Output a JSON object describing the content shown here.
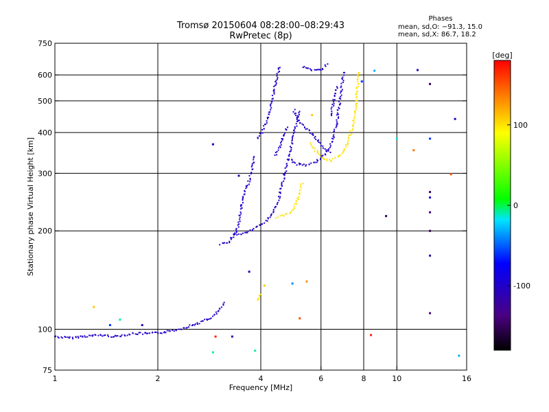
{
  "chart_data": {
    "type": "scatter",
    "title": "Tromsø 20150604 08:28:00–08:29:43",
    "subtitle": "RwPretec (8p)",
    "info_title": "Phases",
    "info_lines": [
      "mean, sd,O: −91.3, 15.0",
      "mean, sd,X:  86.7, 18.2"
    ],
    "xlabel": "Frequency [MHz]",
    "ylabel": "Stationary phase Virtual Height [km]",
    "x_scale": "log",
    "y_scale": "log",
    "xlim": [
      1,
      16
    ],
    "ylim": [
      75,
      750
    ],
    "xticks": [
      1,
      2,
      4,
      6,
      8,
      10,
      16
    ],
    "xtick_labels": [
      "1",
      "2",
      "4",
      "6",
      "8",
      "10",
      "16"
    ],
    "yticks": [
      75,
      100,
      200,
      300,
      400,
      500,
      600,
      750
    ],
    "ytick_labels": [
      "75",
      "100",
      "200",
      "300",
      "400",
      "500",
      "600",
      "750"
    ],
    "grid": true,
    "colorbar": {
      "label": "[deg]",
      "range": [
        -180,
        180
      ],
      "ticks": [
        100,
        0,
        -100
      ],
      "tick_labels": [
        "100",
        "0",
        "-100"
      ]
    },
    "o_trace": {
      "color_phase": -100,
      "segments": [
        [
          [
            1.0,
            95
          ],
          [
            1.1,
            94
          ],
          [
            1.2,
            95
          ],
          [
            1.35,
            96
          ],
          [
            1.5,
            95
          ],
          [
            1.7,
            97
          ],
          [
            1.9,
            97
          ],
          [
            2.1,
            98
          ],
          [
            2.3,
            100
          ],
          [
            2.6,
            104
          ],
          [
            2.85,
            108
          ],
          [
            3.0,
            113
          ],
          [
            3.15,
            121
          ]
        ],
        [
          [
            3.05,
            182
          ],
          [
            3.2,
            184
          ],
          [
            3.35,
            194
          ],
          [
            3.45,
            210
          ],
          [
            3.5,
            232
          ],
          [
            3.55,
            252
          ],
          [
            3.62,
            268
          ],
          [
            3.7,
            285
          ],
          [
            3.78,
            310
          ],
          [
            3.85,
            340
          ]
        ],
        [
          [
            3.35,
            195
          ],
          [
            3.55,
            196
          ],
          [
            3.8,
            202
          ],
          [
            4.1,
            212
          ],
          [
            4.35,
            228
          ],
          [
            4.5,
            245
          ],
          [
            4.6,
            270
          ],
          [
            4.7,
            300
          ],
          [
            4.8,
            330
          ],
          [
            4.9,
            360
          ],
          [
            5.0,
            395
          ],
          [
            5.1,
            430
          ],
          [
            5.2,
            470
          ]
        ],
        [
          [
            3.9,
            385
          ],
          [
            4.05,
            405
          ],
          [
            4.15,
            430
          ],
          [
            4.25,
            460
          ],
          [
            4.32,
            500
          ],
          [
            4.38,
            545
          ],
          [
            4.45,
            580
          ],
          [
            4.5,
            610
          ],
          [
            4.55,
            640
          ]
        ],
        [
          [
            5.3,
            635
          ],
          [
            5.6,
            622
          ],
          [
            5.9,
            620
          ],
          [
            6.1,
            630
          ],
          [
            6.3,
            648
          ]
        ],
        [
          [
            4.4,
            340
          ],
          [
            4.55,
            360
          ],
          [
            4.65,
            385
          ],
          [
            4.72,
            405
          ],
          [
            4.8,
            420
          ]
        ],
        [
          [
            4.9,
            330
          ],
          [
            5.1,
            320
          ],
          [
            5.4,
            318
          ],
          [
            5.7,
            322
          ],
          [
            5.9,
            330
          ],
          [
            6.2,
            345
          ],
          [
            6.5,
            380
          ],
          [
            6.65,
            420
          ],
          [
            6.75,
            470
          ],
          [
            6.85,
            520
          ],
          [
            6.95,
            580
          ],
          [
            7.0,
            620
          ]
        ],
        [
          [
            5.0,
            470
          ],
          [
            5.1,
            440
          ],
          [
            5.3,
            420
          ],
          [
            5.6,
            400
          ],
          [
            5.9,
            375
          ],
          [
            6.2,
            355
          ],
          [
            6.4,
            345
          ]
        ],
        [
          [
            6.4,
            450
          ],
          [
            6.5,
            480
          ],
          [
            6.6,
            530
          ],
          [
            6.7,
            560
          ]
        ]
      ]
    },
    "x_trace": {
      "color_phase": 100,
      "segments": [
        [
          [
            3.9,
            122
          ],
          [
            4.0,
            130
          ]
        ],
        [
          [
            4.45,
            220
          ],
          [
            4.6,
            222
          ],
          [
            4.8,
            225
          ],
          [
            4.95,
            232
          ],
          [
            5.1,
            245
          ],
          [
            5.2,
            260
          ],
          [
            5.3,
            282
          ]
        ],
        [
          [
            5.6,
            370
          ],
          [
            5.75,
            355
          ],
          [
            5.9,
            345
          ],
          [
            6.1,
            332
          ],
          [
            6.4,
            328
          ],
          [
            6.7,
            335
          ],
          [
            7.0,
            350
          ],
          [
            7.2,
            375
          ],
          [
            7.4,
            410
          ],
          [
            7.55,
            450
          ],
          [
            7.62,
            500
          ],
          [
            7.68,
            560
          ],
          [
            7.72,
            620
          ]
        ]
      ]
    },
    "scattered_points": [
      {
        "x": 1.3,
        "y": 117,
        "phase": 110
      },
      {
        "x": 1.55,
        "y": 107,
        "phase": -10
      },
      {
        "x": 1.45,
        "y": 103,
        "phase": -60
      },
      {
        "x": 1.8,
        "y": 103,
        "phase": -110
      },
      {
        "x": 2.9,
        "y": 368,
        "phase": -100
      },
      {
        "x": 2.9,
        "y": 85,
        "phase": -10
      },
      {
        "x": 2.95,
        "y": 95,
        "phase": 170
      },
      {
        "x": 3.3,
        "y": 95,
        "phase": -120
      },
      {
        "x": 3.45,
        "y": 295,
        "phase": -110
      },
      {
        "x": 3.7,
        "y": 150,
        "phase": -100
      },
      {
        "x": 3.85,
        "y": 86,
        "phase": -10
      },
      {
        "x": 4.1,
        "y": 136,
        "phase": 110
      },
      {
        "x": 4.95,
        "y": 138,
        "phase": -40
      },
      {
        "x": 5.2,
        "y": 108,
        "phase": 150
      },
      {
        "x": 5.45,
        "y": 140,
        "phase": 130
      },
      {
        "x": 5.65,
        "y": 452,
        "phase": 110
      },
      {
        "x": 7.9,
        "y": 573,
        "phase": -60
      },
      {
        "x": 8.4,
        "y": 96,
        "phase": 170
      },
      {
        "x": 8.6,
        "y": 618,
        "phase": -30
      },
      {
        "x": 9.3,
        "y": 222,
        "phase": -150
      },
      {
        "x": 10.0,
        "y": 383,
        "phase": -20
      },
      {
        "x": 11.2,
        "y": 353,
        "phase": 140
      },
      {
        "x": 11.5,
        "y": 621,
        "phase": -110
      },
      {
        "x": 12.5,
        "y": 563,
        "phase": -150
      },
      {
        "x": 12.5,
        "y": 383,
        "phase": -60
      },
      {
        "x": 12.5,
        "y": 263,
        "phase": -150
      },
      {
        "x": 12.5,
        "y": 253,
        "phase": -100
      },
      {
        "x": 12.5,
        "y": 228,
        "phase": -130
      },
      {
        "x": 12.5,
        "y": 200,
        "phase": -150
      },
      {
        "x": 12.5,
        "y": 168,
        "phase": -120
      },
      {
        "x": 12.5,
        "y": 112,
        "phase": -140
      },
      {
        "x": 14.8,
        "y": 440,
        "phase": -110
      },
      {
        "x": 14.4,
        "y": 298,
        "phase": 150
      },
      {
        "x": 15.2,
        "y": 83,
        "phase": -30
      }
    ]
  }
}
